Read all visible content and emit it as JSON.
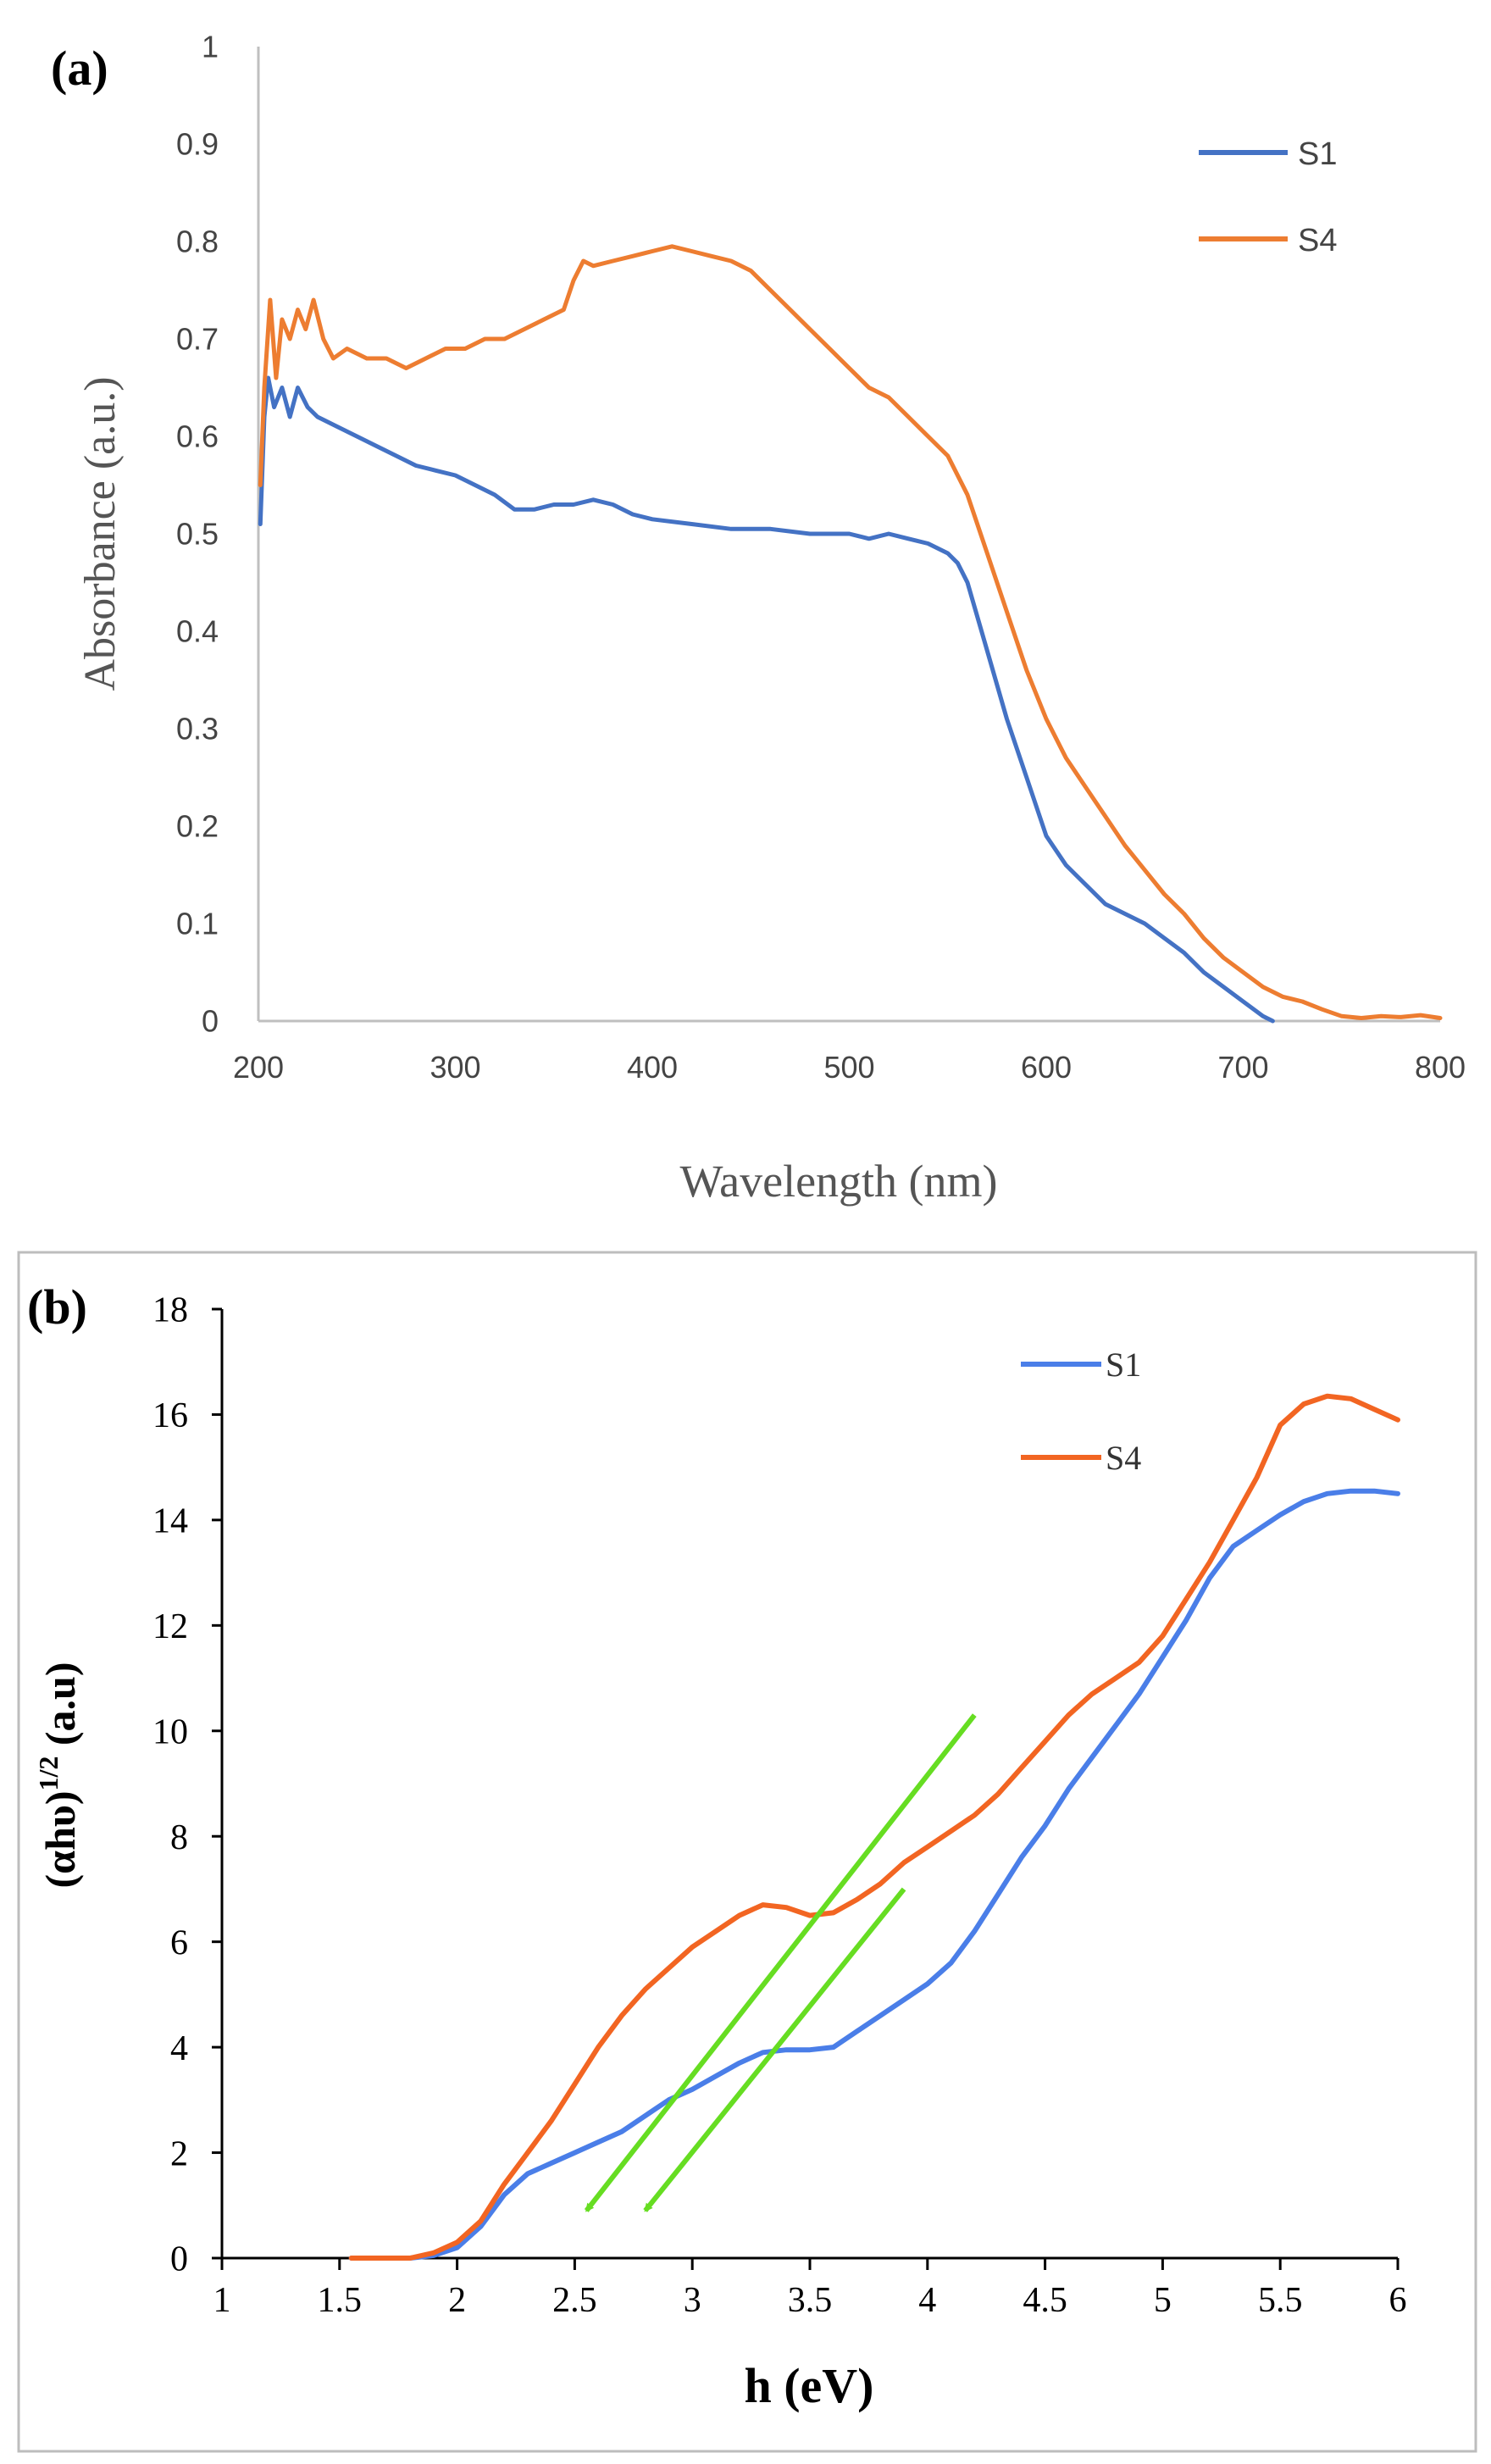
{
  "chart_data": [
    {
      "type": "line",
      "panel_label": "(a)",
      "title": "",
      "xlabel": "Wavelength (nm)",
      "ylabel": "Absorbance (a.u.)",
      "xlim": [
        200,
        800
      ],
      "ylim": [
        0,
        1
      ],
      "xticks": [
        "200",
        "300",
        "400",
        "500",
        "600",
        "700",
        "800"
      ],
      "yticks": [
        "0",
        "0.1",
        "0.2",
        "0.3",
        "0.4",
        "0.5",
        "0.6",
        "0.7",
        "0.8",
        "0.9",
        "1"
      ],
      "grid": false,
      "legend": "top-right",
      "series": [
        {
          "name": "S1",
          "color": "#4472c4",
          "points": [
            [
              201,
              0.51
            ],
            [
              203,
              0.62
            ],
            [
              205,
              0.66
            ],
            [
              208,
              0.63
            ],
            [
              212,
              0.65
            ],
            [
              216,
              0.62
            ],
            [
              220,
              0.65
            ],
            [
              225,
              0.63
            ],
            [
              230,
              0.62
            ],
            [
              240,
              0.61
            ],
            [
              250,
              0.6
            ],
            [
              260,
              0.59
            ],
            [
              270,
              0.58
            ],
            [
              280,
              0.57
            ],
            [
              290,
              0.565
            ],
            [
              300,
              0.56
            ],
            [
              310,
              0.55
            ],
            [
              320,
              0.54
            ],
            [
              330,
              0.525
            ],
            [
              340,
              0.525
            ],
            [
              350,
              0.53
            ],
            [
              360,
              0.53
            ],
            [
              370,
              0.535
            ],
            [
              380,
              0.53
            ],
            [
              390,
              0.52
            ],
            [
              400,
              0.515
            ],
            [
              420,
              0.51
            ],
            [
              440,
              0.505
            ],
            [
              460,
              0.505
            ],
            [
              480,
              0.5
            ],
            [
              500,
              0.5
            ],
            [
              510,
              0.495
            ],
            [
              520,
              0.5
            ],
            [
              530,
              0.495
            ],
            [
              540,
              0.49
            ],
            [
              550,
              0.48
            ],
            [
              555,
              0.47
            ],
            [
              560,
              0.45
            ],
            [
              570,
              0.38
            ],
            [
              580,
              0.31
            ],
            [
              590,
              0.25
            ],
            [
              600,
              0.19
            ],
            [
              610,
              0.16
            ],
            [
              620,
              0.14
            ],
            [
              630,
              0.12
            ],
            [
              640,
              0.11
            ],
            [
              650,
              0.1
            ],
            [
              660,
              0.085
            ],
            [
              670,
              0.07
            ],
            [
              680,
              0.05
            ],
            [
              690,
              0.035
            ],
            [
              700,
              0.02
            ],
            [
              710,
              0.005
            ],
            [
              715,
              0
            ]
          ]
        },
        {
          "name": "S4",
          "color": "#ed7d31",
          "points": [
            [
              201,
              0.55
            ],
            [
              203,
              0.65
            ],
            [
              206,
              0.74
            ],
            [
              209,
              0.66
            ],
            [
              212,
              0.72
            ],
            [
              216,
              0.7
            ],
            [
              220,
              0.73
            ],
            [
              224,
              0.71
            ],
            [
              228,
              0.74
            ],
            [
              233,
              0.7
            ],
            [
              238,
              0.68
            ],
            [
              245,
              0.69
            ],
            [
              255,
              0.68
            ],
            [
              265,
              0.68
            ],
            [
              275,
              0.67
            ],
            [
              285,
              0.68
            ],
            [
              295,
              0.69
            ],
            [
              305,
              0.69
            ],
            [
              315,
              0.7
            ],
            [
              325,
              0.7
            ],
            [
              335,
              0.71
            ],
            [
              345,
              0.72
            ],
            [
              355,
              0.73
            ],
            [
              360,
              0.76
            ],
            [
              365,
              0.78
            ],
            [
              370,
              0.775
            ],
            [
              380,
              0.78
            ],
            [
              390,
              0.785
            ],
            [
              400,
              0.79
            ],
            [
              410,
              0.795
            ],
            [
              420,
              0.79
            ],
            [
              430,
              0.785
            ],
            [
              440,
              0.78
            ],
            [
              450,
              0.77
            ],
            [
              460,
              0.75
            ],
            [
              470,
              0.73
            ],
            [
              480,
              0.71
            ],
            [
              490,
              0.69
            ],
            [
              500,
              0.67
            ],
            [
              510,
              0.65
            ],
            [
              520,
              0.64
            ],
            [
              530,
              0.62
            ],
            [
              540,
              0.6
            ],
            [
              550,
              0.58
            ],
            [
              560,
              0.54
            ],
            [
              570,
              0.48
            ],
            [
              580,
              0.42
            ],
            [
              590,
              0.36
            ],
            [
              600,
              0.31
            ],
            [
              610,
              0.27
            ],
            [
              620,
              0.24
            ],
            [
              630,
              0.21
            ],
            [
              640,
              0.18
            ],
            [
              650,
              0.155
            ],
            [
              660,
              0.13
            ],
            [
              670,
              0.11
            ],
            [
              680,
              0.085
            ],
            [
              690,
              0.065
            ],
            [
              700,
              0.05
            ],
            [
              710,
              0.035
            ],
            [
              720,
              0.025
            ],
            [
              730,
              0.02
            ],
            [
              740,
              0.012
            ],
            [
              750,
              0.005
            ],
            [
              760,
              0.003
            ],
            [
              770,
              0.005
            ],
            [
              780,
              0.004
            ],
            [
              790,
              0.006
            ],
            [
              800,
              0.003
            ]
          ]
        }
      ]
    },
    {
      "type": "line",
      "panel_label": "(b)",
      "title": "",
      "xlabel": "h (eV)",
      "ylabel": "(αhυ)",
      "ylabel_superscript": "1/2",
      "ylabel_suffix": " (a.u)",
      "xlim": [
        1,
        6
      ],
      "ylim": [
        0,
        18
      ],
      "xticks": [
        "1",
        "1.5",
        "2",
        "2.5",
        "3",
        "3.5",
        "4",
        "4.5",
        "5",
        "5.5",
        "6"
      ],
      "yticks": [
        "0",
        "2",
        "4",
        "6",
        "8",
        "10",
        "12",
        "14",
        "16",
        "18"
      ],
      "grid": false,
      "legend": "top-right",
      "series": [
        {
          "name": "S1",
          "color": "#4a7ee8",
          "points": [
            [
              1.55,
              0
            ],
            [
              1.8,
              0
            ],
            [
              1.9,
              0.05
            ],
            [
              2.0,
              0.2
            ],
            [
              2.1,
              0.6
            ],
            [
              2.2,
              1.2
            ],
            [
              2.3,
              1.6
            ],
            [
              2.4,
              1.8
            ],
            [
              2.5,
              2.0
            ],
            [
              2.6,
              2.2
            ],
            [
              2.7,
              2.4
            ],
            [
              2.8,
              2.7
            ],
            [
              2.9,
              3.0
            ],
            [
              3.0,
              3.2
            ],
            [
              3.1,
              3.45
            ],
            [
              3.2,
              3.7
            ],
            [
              3.3,
              3.9
            ],
            [
              3.4,
              3.95
            ],
            [
              3.5,
              3.95
            ],
            [
              3.6,
              4.0
            ],
            [
              3.7,
              4.3
            ],
            [
              3.8,
              4.6
            ],
            [
              3.9,
              4.9
            ],
            [
              4.0,
              5.2
            ],
            [
              4.1,
              5.6
            ],
            [
              4.2,
              6.2
            ],
            [
              4.3,
              6.9
            ],
            [
              4.4,
              7.6
            ],
            [
              4.5,
              8.2
            ],
            [
              4.6,
              8.9
            ],
            [
              4.7,
              9.5
            ],
            [
              4.8,
              10.1
            ],
            [
              4.9,
              10.7
            ],
            [
              5.0,
              11.4
            ],
            [
              5.1,
              12.1
            ],
            [
              5.2,
              12.9
            ],
            [
              5.3,
              13.5
            ],
            [
              5.4,
              13.8
            ],
            [
              5.5,
              14.1
            ],
            [
              5.6,
              14.35
            ],
            [
              5.7,
              14.5
            ],
            [
              5.8,
              14.55
            ],
            [
              5.9,
              14.55
            ],
            [
              6.0,
              14.5
            ]
          ]
        },
        {
          "name": "S4",
          "color": "#f26522",
          "points": [
            [
              1.55,
              0
            ],
            [
              1.8,
              0
            ],
            [
              1.9,
              0.1
            ],
            [
              2.0,
              0.3
            ],
            [
              2.1,
              0.7
            ],
            [
              2.2,
              1.4
            ],
            [
              2.3,
              2.0
            ],
            [
              2.4,
              2.6
            ],
            [
              2.5,
              3.3
            ],
            [
              2.6,
              4.0
            ],
            [
              2.7,
              4.6
            ],
            [
              2.8,
              5.1
            ],
            [
              2.9,
              5.5
            ],
            [
              3.0,
              5.9
            ],
            [
              3.1,
              6.2
            ],
            [
              3.2,
              6.5
            ],
            [
              3.3,
              6.7
            ],
            [
              3.4,
              6.65
            ],
            [
              3.5,
              6.5
            ],
            [
              3.6,
              6.55
            ],
            [
              3.7,
              6.8
            ],
            [
              3.8,
              7.1
            ],
            [
              3.9,
              7.5
            ],
            [
              4.0,
              7.8
            ],
            [
              4.1,
              8.1
            ],
            [
              4.2,
              8.4
            ],
            [
              4.3,
              8.8
            ],
            [
              4.4,
              9.3
            ],
            [
              4.5,
              9.8
            ],
            [
              4.6,
              10.3
            ],
            [
              4.7,
              10.7
            ],
            [
              4.8,
              11.0
            ],
            [
              4.9,
              11.3
            ],
            [
              5.0,
              11.8
            ],
            [
              5.1,
              12.5
            ],
            [
              5.2,
              13.2
            ],
            [
              5.3,
              14.0
            ],
            [
              5.4,
              14.8
            ],
            [
              5.5,
              15.8
            ],
            [
              5.6,
              16.2
            ],
            [
              5.7,
              16.35
            ],
            [
              5.8,
              16.3
            ],
            [
              5.9,
              16.1
            ],
            [
              6.0,
              15.9
            ]
          ]
        }
      ],
      "annotations": [
        {
          "type": "arrow",
          "color": "#66dd22",
          "from": [
            4.2,
            10.3
          ],
          "to": [
            2.55,
            0.9
          ]
        },
        {
          "type": "arrow",
          "color": "#66dd22",
          "from": [
            3.9,
            7.0
          ],
          "to": [
            2.8,
            0.9
          ]
        }
      ]
    }
  ]
}
